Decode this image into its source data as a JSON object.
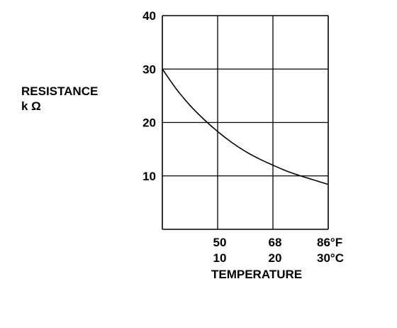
{
  "chart_data": {
    "type": "line",
    "title": "",
    "ylabel": "RESISTANCE",
    "ylabel_unit": "k Ω",
    "xlabel": "TEMPERATURE",
    "ylim": [
      0,
      40
    ],
    "yticks": [
      10,
      20,
      30,
      40
    ],
    "xlim_c": [
      0,
      30
    ],
    "xticks_c": [
      10,
      20,
      30
    ],
    "xtick_labels_f": [
      "50",
      "68",
      "86°F"
    ],
    "xtick_labels_c": [
      "10",
      "20",
      "30°C"
    ],
    "grid": true,
    "series": [
      {
        "x_c": [
          0,
          2.5,
          5,
          7.5,
          10,
          12.5,
          15,
          17.5,
          20,
          22.5,
          25,
          27.5,
          30
        ],
        "values": [
          30,
          26.3,
          23.2,
          20.6,
          18.3,
          16.3,
          14.6,
          13.2,
          12.0,
          10.9,
          10.0,
          9.2,
          8.4
        ]
      }
    ]
  }
}
